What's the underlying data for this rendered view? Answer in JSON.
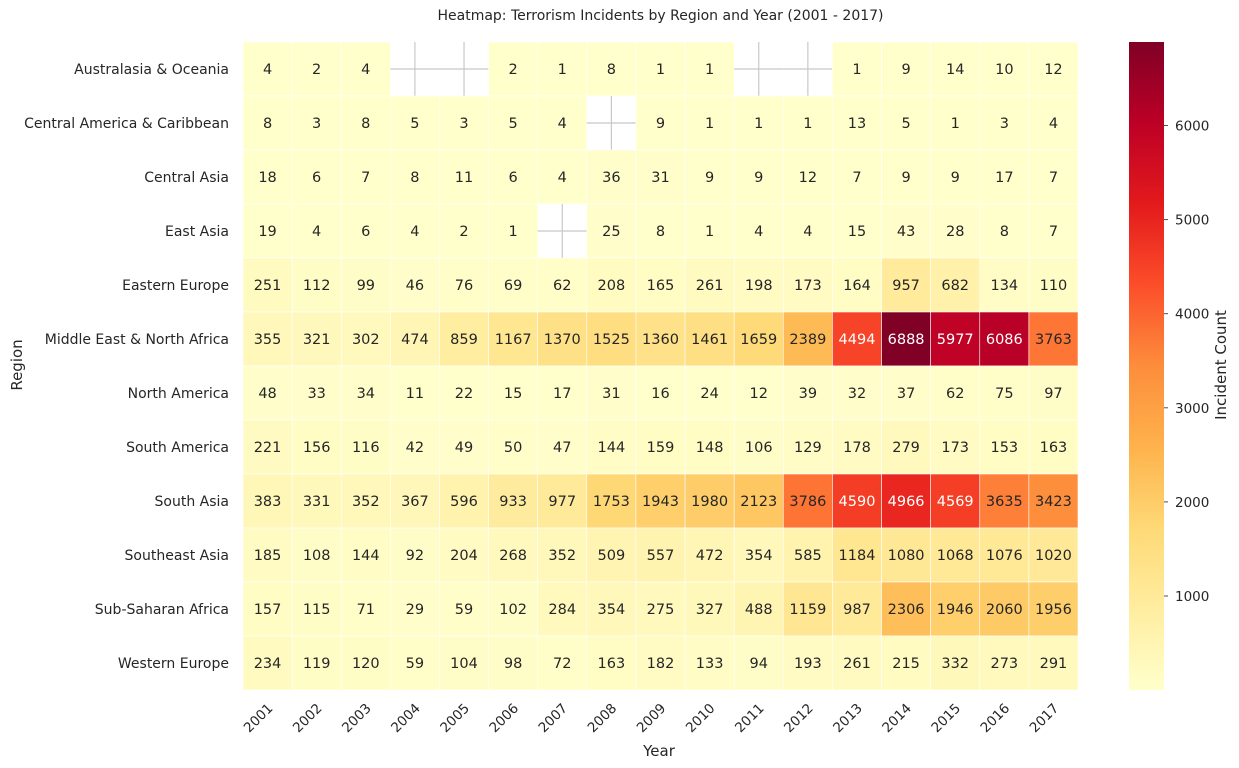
{
  "chart_data": {
    "type": "heatmap",
    "title": "Heatmap: Terrorism Incidents by Region and Year (2001 - 2017)",
    "xlabel": "Year",
    "ylabel": "Region",
    "colorbar_label": "Incident Count",
    "colormap": "YlOrRd",
    "colormap_stops": [
      "#ffffcc",
      "#ffeda0",
      "#fed976",
      "#feb24c",
      "#fd8d3c",
      "#fc4e2a",
      "#e31a1c",
      "#bd0026",
      "#800026"
    ],
    "missing_cell_color": "#ffffff",
    "value_range": [
      1,
      6888
    ],
    "colorbar_ticks": [
      "1000",
      "2000",
      "3000",
      "4000",
      "5000",
      "6000"
    ],
    "colorbar_tick_values": [
      1000,
      2000,
      3000,
      4000,
      5000,
      6000
    ],
    "x_categories": [
      "2001",
      "2002",
      "2003",
      "2004",
      "2005",
      "2006",
      "2007",
      "2008",
      "2009",
      "2010",
      "2011",
      "2012",
      "2013",
      "2014",
      "2015",
      "2016",
      "2017"
    ],
    "y_categories": [
      "Australasia & Oceania",
      "Central America & Caribbean",
      "Central Asia",
      "East Asia",
      "Eastern Europe",
      "Middle East & North Africa",
      "North America",
      "South America",
      "South Asia",
      "Southeast Asia",
      "Sub-Saharan Africa",
      "Western Europe"
    ],
    "values": [
      [
        4,
        2,
        4,
        null,
        null,
        2,
        1,
        8,
        1,
        1,
        null,
        null,
        1,
        9,
        14,
        10,
        12
      ],
      [
        8,
        3,
        8,
        5,
        3,
        5,
        4,
        null,
        9,
        1,
        1,
        1,
        13,
        5,
        1,
        3,
        4
      ],
      [
        18,
        6,
        7,
        8,
        11,
        6,
        4,
        36,
        31,
        9,
        9,
        12,
        7,
        9,
        9,
        17,
        7
      ],
      [
        19,
        4,
        6,
        4,
        2,
        1,
        null,
        25,
        8,
        1,
        4,
        4,
        15,
        43,
        28,
        8,
        7
      ],
      [
        251,
        112,
        99,
        46,
        76,
        69,
        62,
        208,
        165,
        261,
        198,
        173,
        164,
        957,
        682,
        134,
        110
      ],
      [
        355,
        321,
        302,
        474,
        859,
        1167,
        1370,
        1525,
        1360,
        1461,
        1659,
        2389,
        4494,
        6888,
        5977,
        6086,
        3763
      ],
      [
        48,
        33,
        34,
        11,
        22,
        15,
        17,
        31,
        16,
        24,
        12,
        39,
        32,
        37,
        62,
        75,
        97
      ],
      [
        221,
        156,
        116,
        42,
        49,
        50,
        47,
        144,
        159,
        148,
        106,
        129,
        178,
        279,
        173,
        153,
        163
      ],
      [
        383,
        331,
        352,
        367,
        596,
        933,
        977,
        1753,
        1943,
        1980,
        2123,
        3786,
        4590,
        4966,
        4569,
        3635,
        3423
      ],
      [
        185,
        108,
        144,
        92,
        204,
        268,
        352,
        509,
        557,
        472,
        354,
        585,
        1184,
        1080,
        1068,
        1076,
        1020
      ],
      [
        157,
        115,
        71,
        29,
        59,
        102,
        284,
        354,
        275,
        327,
        488,
        1159,
        987,
        2306,
        1946,
        2060,
        1956
      ],
      [
        234,
        119,
        120,
        59,
        104,
        98,
        72,
        163,
        182,
        133,
        94,
        193,
        261,
        215,
        332,
        273,
        291
      ]
    ],
    "grid": false
  }
}
